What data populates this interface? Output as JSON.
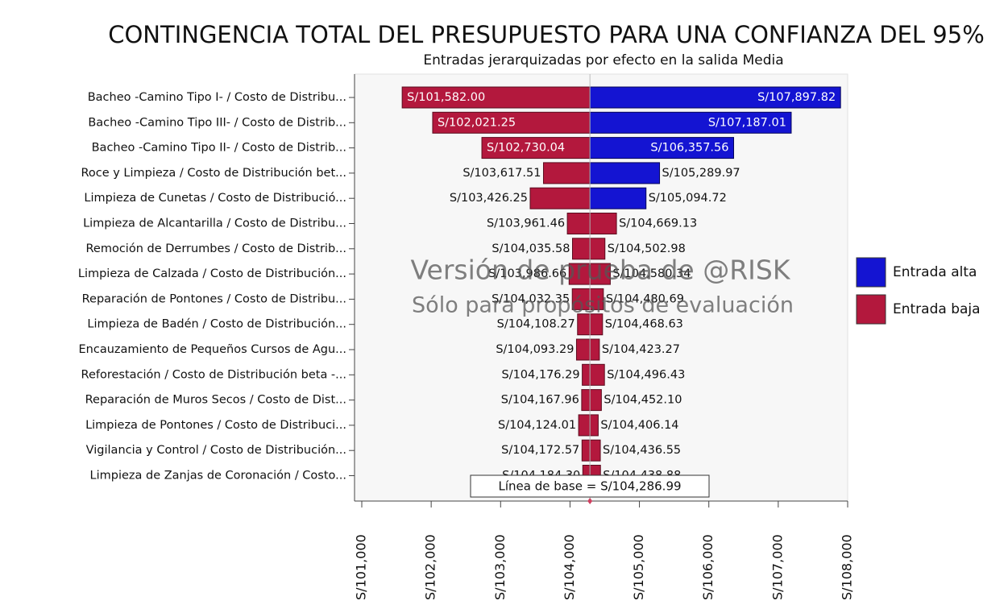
{
  "chart_data": {
    "type": "tornado",
    "title": "CONTINGENCIA TOTAL DEL PRESUPUESTO PARA UNA CONFIANZA DEL 95%",
    "subtitle": "Entradas jerarquizadas por efecto en la salida Media",
    "categories": [
      "Bacheo -Camino Tipo I- / Costo de Distribu...",
      "Bacheo -Camino Tipo III- / Costo de Distrib...",
      "Bacheo -Camino Tipo II- / Costo de Distrib...",
      "Roce y Limpieza / Costo de Distribución bet...",
      "Limpieza de Cunetas / Costo de Distribució...",
      "Limpieza de Alcantarilla / Costo de Distribu...",
      "Remoción de Derrumbes / Costo de Distrib...",
      "Limpieza de Calzada / Costo de Distribución...",
      "Reparación de Pontones / Costo de Distribu...",
      "Limpieza de Badén / Costo de Distribución...",
      "Encauzamiento de Pequeños Cursos de Agu...",
      "Reforestación / Costo de Distribución beta -...",
      "Reparación de Muros Secos / Costo de Dist...",
      "Limpieza de Pontones / Costo de Distribuci...",
      "Vigilancia y Control / Costo de Distribución...",
      "Limpieza de Zanjas de Coronación / Costo..."
    ],
    "series": [
      {
        "name": "Entrada alta",
        "color": "#1414d2",
        "colors": [
          "#1414d2",
          "#1414d2",
          "#1414d2",
          "#1414d2",
          "#1414d2",
          "#b3183d",
          "#b3183d",
          "#b3183d",
          "#b3183d",
          "#b3183d",
          "#b3183d",
          "#b3183d",
          "#b3183d",
          "#b3183d",
          "#b3183d",
          "#b3183d"
        ],
        "values": [
          107897.82,
          107187.01,
          106357.56,
          105289.97,
          105094.72,
          104669.13,
          104502.98,
          104580.34,
          104480.69,
          104468.63,
          104423.27,
          104496.43,
          104452.1,
          104406.14,
          104436.55,
          104438.88
        ],
        "value_labels": [
          "S/107,897.82",
          "S/107,187.01",
          "S/106,357.56",
          "S/105,289.97",
          "S/105,094.72",
          "S/104,669.13",
          "S/104,502.98",
          "S/104,580.34",
          "S/104,480.69",
          "S/104,468.63",
          "S/104,423.27",
          "S/104,496.43",
          "S/104,452.10",
          "S/104,406.14",
          "S/104,436.55",
          "S/104,438.88"
        ]
      },
      {
        "name": "Entrada baja",
        "color": "#b3183d",
        "values": [
          101582.0,
          102021.25,
          102730.04,
          103617.51,
          103426.25,
          103961.46,
          104035.58,
          103986.66,
          104032.35,
          104108.27,
          104093.29,
          104176.29,
          104167.96,
          104124.01,
          104172.57,
          104184.3
        ],
        "value_labels": [
          "S/101,582.00",
          "S/102,021.25",
          "S/102,730.04",
          "S/103,617.51",
          "S/103,426.25",
          "S/103,961.46",
          "S/104,035.58",
          "S/103,986.66",
          "S/104,032.35",
          "S/104,108.27",
          "S/104,093.29",
          "S/104,176.29",
          "S/104,167.96",
          "S/104,124.01",
          "S/104,172.57",
          "S/104,184.30"
        ]
      }
    ],
    "baseline": 104286.99,
    "baseline_label": "Línea de base = S/104,286.99",
    "watermark": [
      "Versión de prueba de @RISK",
      "Sólo para propósitos de evaluación"
    ],
    "xlim": [
      101000,
      108000
    ],
    "xticks": [
      {
        "value": 101000,
        "label": "S/101,000"
      },
      {
        "value": 102000,
        "label": "S/102,000"
      },
      {
        "value": 103000,
        "label": "S/103,000"
      },
      {
        "value": 104000,
        "label": "S/104,000"
      },
      {
        "value": 105000,
        "label": "S/105,000"
      },
      {
        "value": 106000,
        "label": "S/106,000"
      },
      {
        "value": 107000,
        "label": "S/107,000"
      },
      {
        "value": 108000,
        "label": "S/108,000"
      }
    ],
    "legend": "right"
  }
}
